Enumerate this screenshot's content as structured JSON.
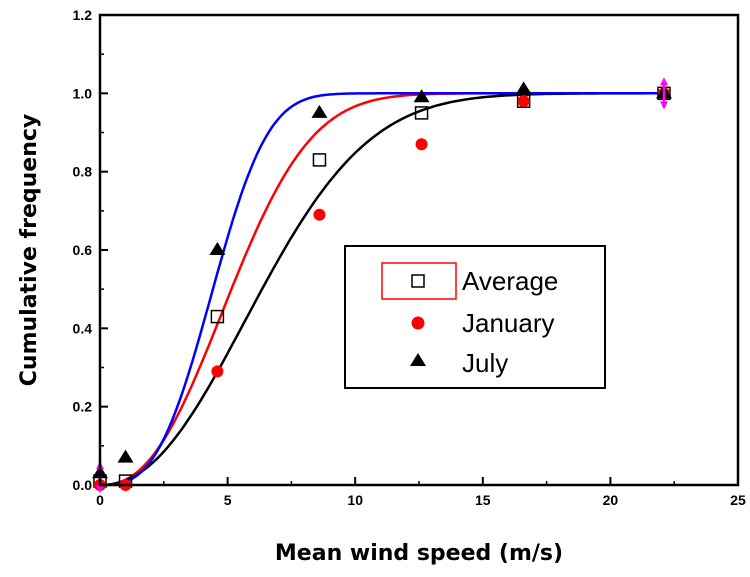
{
  "chart_data": {
    "type": "scatter",
    "xlabel": "Mean wind speed (m/s)",
    "ylabel": "Cumulative frequency",
    "xlim": [
      0,
      25
    ],
    "ylim": [
      0,
      1.2
    ],
    "x_ticks": [
      "0",
      "5",
      "10",
      "15",
      "20",
      "25"
    ],
    "y_ticks": [
      "0.0",
      "0.2",
      "0.4",
      "0.6",
      "0.8",
      "1.0",
      "1.2"
    ],
    "grid": false,
    "legend_position": "center-right",
    "series": [
      {
        "name": "Average",
        "marker": "open-square",
        "marker_color": "#000000",
        "fit_line_color": "#ff0000",
        "points": [
          [
            0,
            0.01
          ],
          [
            1,
            0.01
          ],
          [
            4.6,
            0.43
          ],
          [
            8.6,
            0.83
          ],
          [
            12.6,
            0.95
          ],
          [
            16.6,
            0.98
          ],
          [
            22.1,
            1.0
          ]
        ],
        "fit": {
          "k": 2.4,
          "c": 6.0
        }
      },
      {
        "name": "January",
        "marker": "filled-circle",
        "marker_color": "#ff0000",
        "fit_line_color": "#000000",
        "points": [
          [
            0,
            0.0
          ],
          [
            1,
            0.0
          ],
          [
            4.6,
            0.29
          ],
          [
            8.6,
            0.69
          ],
          [
            12.6,
            0.87
          ],
          [
            16.6,
            0.98
          ],
          [
            22.1,
            1.0
          ]
        ],
        "fit": {
          "k": 2.2,
          "c": 7.5
        }
      },
      {
        "name": "July",
        "marker": "filled-triangle",
        "marker_color": "#000000",
        "fit_line_color": "#0000ff",
        "points": [
          [
            0,
            0.03
          ],
          [
            1,
            0.07
          ],
          [
            4.6,
            0.6
          ],
          [
            8.6,
            0.95
          ],
          [
            12.6,
            0.99
          ],
          [
            16.6,
            1.01
          ],
          [
            22.1,
            1.0
          ]
        ],
        "fit": {
          "k": 3.0,
          "c": 5.0
        }
      }
    ]
  }
}
